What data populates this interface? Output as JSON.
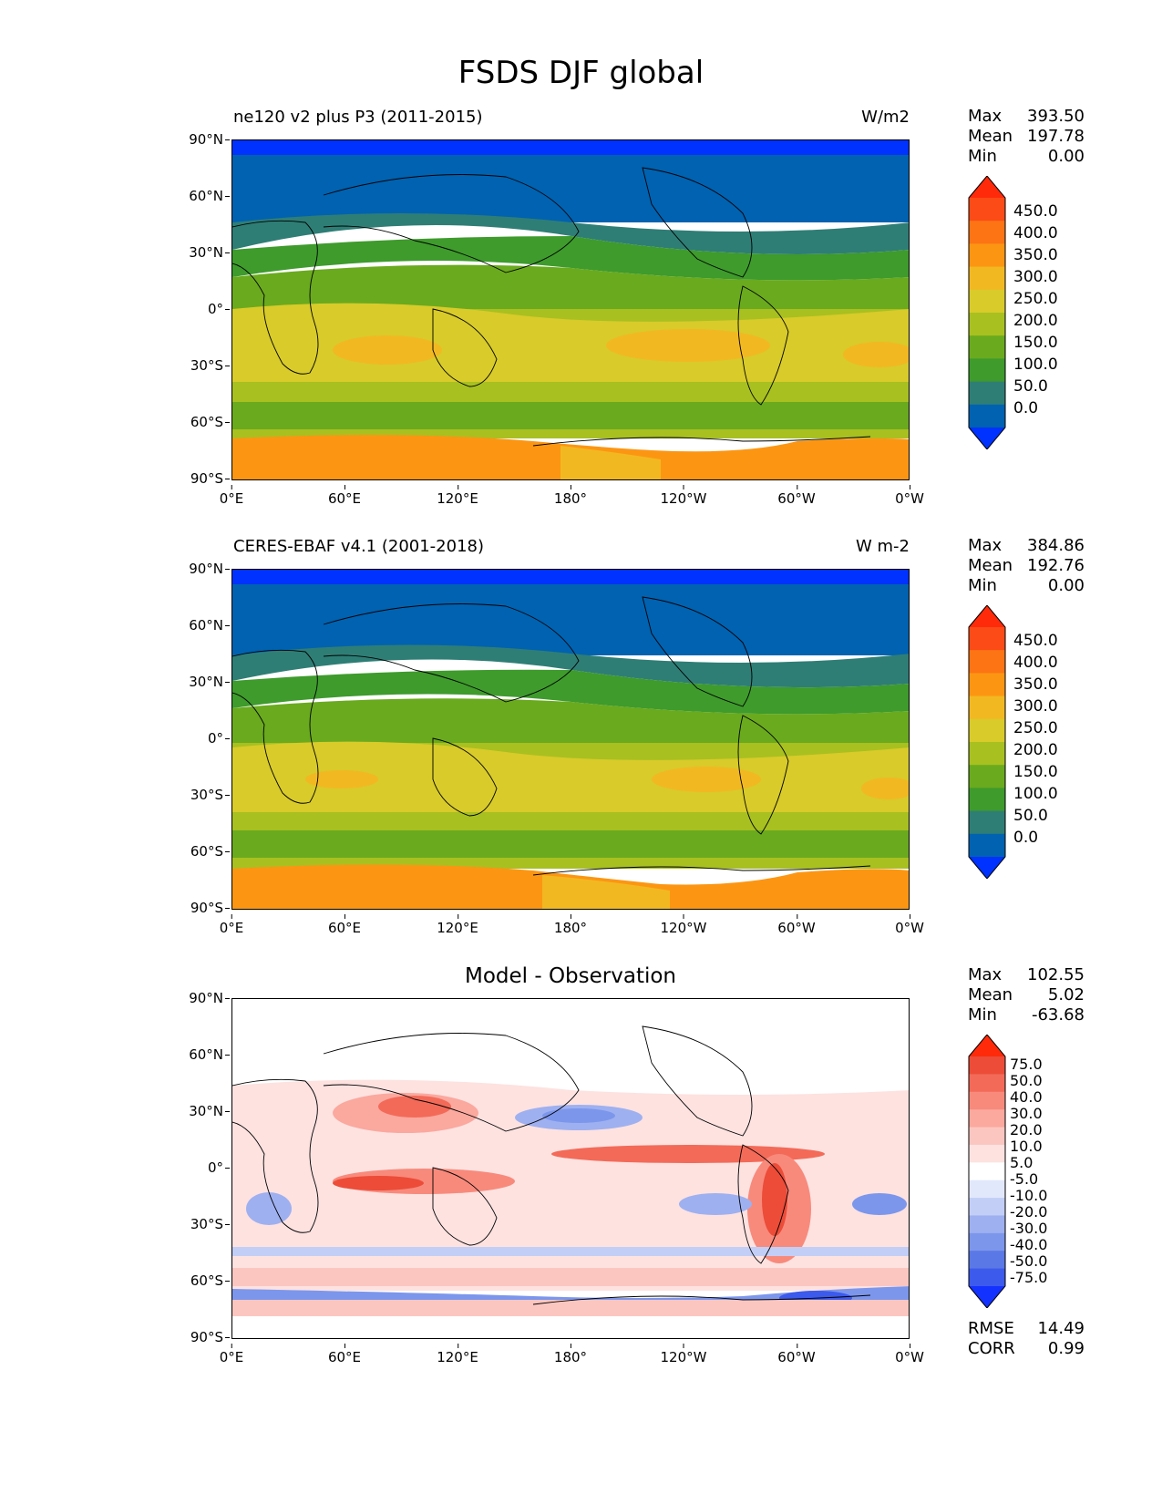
{
  "figure": {
    "title": "FSDS DJF global"
  },
  "axes": {
    "lat_ticks": [
      "90°N",
      "60°N",
      "30°N",
      "0°",
      "30°S",
      "60°S",
      "90°S"
    ],
    "lon_ticks": [
      "0°E",
      "60°E",
      "120°E",
      "180°",
      "120°W",
      "60°W",
      "0°W"
    ]
  },
  "panels": [
    {
      "title_left": "ne120 v2 plus P3 (2011-2015)",
      "units": "W/m2",
      "stats": {
        "max_label": "Max",
        "max": "393.50",
        "mean_label": "Mean",
        "mean": "197.78",
        "min_label": "Min",
        "min": "0.00"
      },
      "colorbar_labels": [
        "450.0",
        "400.0",
        "350.0",
        "300.0",
        "250.0",
        "200.0",
        "150.0",
        "100.0",
        "50.0",
        "0.0"
      ]
    },
    {
      "title_left": "CERES-EBAF v4.1 (2001-2018)",
      "units": "W m-2",
      "stats": {
        "max_label": "Max",
        "max": "384.86",
        "mean_label": "Mean",
        "mean": "192.76",
        "min_label": "Min",
        "min": "0.00"
      },
      "colorbar_labels": [
        "450.0",
        "400.0",
        "350.0",
        "300.0",
        "250.0",
        "200.0",
        "150.0",
        "100.0",
        "50.0",
        "0.0"
      ]
    },
    {
      "title_center": "Model - Observation",
      "stats": {
        "max_label": "Max",
        "max": "102.55",
        "mean_label": "Mean",
        "mean": "5.02",
        "min_label": "Min",
        "min": "-63.68"
      },
      "colorbar_labels": [
        "75.0",
        "50.0",
        "40.0",
        "30.0",
        "20.0",
        "10.0",
        "5.0",
        "-5.0",
        "-10.0",
        "-20.0",
        "-30.0",
        "-40.0",
        "-50.0",
        "-75.0"
      ],
      "metrics": {
        "rmse_label": "RMSE",
        "rmse": "14.49",
        "corr_label": "CORR",
        "corr": "0.99"
      }
    }
  ],
  "colormaps": {
    "field": [
      "#0032ff",
      "#0062b0",
      "#2e7e76",
      "#3e9b2c",
      "#6aaa1e",
      "#a8c020",
      "#d8cb2a",
      "#f2b822",
      "#fc9612",
      "#fc7414",
      "#fc4b16",
      "#ff2a0a"
    ],
    "diff": [
      "#1432ff",
      "#3c5aeb",
      "#5a78e6",
      "#7c96ec",
      "#9eb0f0",
      "#c2cef6",
      "#e2e8fc",
      "#ffffff",
      "#fde2e0",
      "#fcc6c0",
      "#fba89e",
      "#f88a7c",
      "#f36a58",
      "#ec4c38",
      "#ff2a0a"
    ]
  }
}
